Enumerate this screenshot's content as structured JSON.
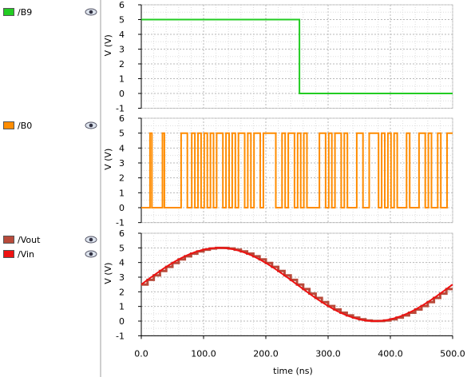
{
  "legend": [
    {
      "label": "/B9",
      "color": "#22cc22",
      "eye": "eye-icon"
    },
    {
      "label": "/B0",
      "color": "#ff8c00",
      "eye": "eye-icon"
    },
    {
      "label": "/Vout",
      "color": "#b84a3a",
      "eye": "eye-icon"
    },
    {
      "label": "/Vin",
      "color": "#ee1111",
      "eye": "eye-icon"
    }
  ],
  "chart_data": [
    {
      "type": "line",
      "ylabel": "V (V)",
      "ylim": [
        -1,
        6
      ],
      "yticks": [
        "-1",
        "0",
        "1",
        "2",
        "3",
        "4",
        "5",
        "6"
      ],
      "series": [
        {
          "name": "/B9",
          "color": "#22cc22",
          "step": true,
          "x": [
            0,
            254,
            254,
            500
          ],
          "y": [
            5,
            5,
            0,
            0
          ]
        }
      ]
    },
    {
      "type": "line",
      "ylabel": "V (V)",
      "ylim": [
        -1,
        6
      ],
      "yticks": [
        "-1",
        "0",
        "1",
        "2",
        "3",
        "4",
        "5",
        "6"
      ],
      "series": [
        {
          "name": "/B0",
          "color": "#ff8c00",
          "step": true,
          "x": [
            0,
            14,
            14,
            17,
            17,
            34,
            34,
            37,
            37,
            64,
            64,
            74,
            74,
            81,
            81,
            86,
            86,
            91,
            91,
            96,
            96,
            101,
            101,
            106,
            106,
            111,
            111,
            116,
            116,
            121,
            121,
            131,
            131,
            136,
            136,
            141,
            141,
            146,
            146,
            151,
            151,
            156,
            156,
            166,
            166,
            171,
            171,
            176,
            176,
            181,
            181,
            191,
            191,
            196,
            196,
            216,
            216,
            226,
            226,
            231,
            231,
            236,
            236,
            246,
            246,
            251,
            251,
            256,
            256,
            261,
            261,
            266,
            266,
            286,
            286,
            296,
            296,
            301,
            301,
            306,
            306,
            311,
            311,
            321,
            321,
            326,
            326,
            331,
            331,
            346,
            346,
            356,
            356,
            366,
            366,
            381,
            381,
            386,
            386,
            391,
            391,
            396,
            396,
            401,
            401,
            406,
            406,
            411,
            411,
            426,
            426,
            431,
            431,
            446,
            446,
            456,
            456,
            461,
            461,
            466,
            466,
            476,
            476,
            481,
            481,
            491,
            491,
            500
          ],
          "y": [
            0,
            0,
            5,
            5,
            0,
            0,
            5,
            5,
            0,
            0,
            5,
            5,
            0,
            0,
            5,
            5,
            0,
            0,
            5,
            5,
            0,
            0,
            5,
            5,
            0,
            0,
            5,
            5,
            0,
            0,
            5,
            5,
            0,
            0,
            5,
            5,
            0,
            0,
            5,
            5,
            0,
            0,
            5,
            5,
            0,
            0,
            5,
            5,
            0,
            0,
            5,
            5,
            0,
            0,
            5,
            5,
            0,
            0,
            5,
            5,
            0,
            0,
            5,
            5,
            0,
            0,
            5,
            5,
            0,
            0,
            5,
            5,
            0,
            0,
            5,
            5,
            0,
            0,
            5,
            5,
            0,
            0,
            5,
            5,
            0,
            0,
            5,
            5,
            0,
            0,
            5,
            5,
            0,
            0,
            5,
            5,
            0,
            0,
            5,
            5,
            0,
            0,
            5,
            5,
            0,
            0,
            5,
            5,
            0,
            0,
            5,
            5,
            0,
            0,
            5,
            5,
            0,
            0,
            5,
            5,
            0,
            0,
            5,
            5,
            0,
            0,
            5,
            5
          ]
        }
      ]
    },
    {
      "type": "line",
      "ylabel": "V (V)",
      "ylim": [
        -1,
        6
      ],
      "yticks": [
        "-1",
        "0",
        "1",
        "2",
        "3",
        "4",
        "5",
        "6"
      ],
      "xlabel": "time (ns)",
      "xlim": [
        0,
        500
      ],
      "xticks": [
        {
          "value": 0,
          "label": "0.0"
        },
        {
          "value": 100,
          "label": "100.0"
        },
        {
          "value": 200,
          "label": "200.0"
        },
        {
          "value": 300,
          "label": "300.0"
        },
        {
          "value": 400,
          "label": "400.0"
        },
        {
          "value": 500,
          "label": "500.0"
        }
      ],
      "series": [
        {
          "name": "/Vout",
          "color": "#b84a3a",
          "function": "quantized-sine",
          "offset": 2.5,
          "amplitude": 2.5,
          "period": 500,
          "step_width": 10,
          "levels": 1024
        },
        {
          "name": "/Vin",
          "color": "#ee1111",
          "function": "sine",
          "offset": 2.5,
          "amplitude": 2.5,
          "period": 500
        }
      ]
    }
  ]
}
